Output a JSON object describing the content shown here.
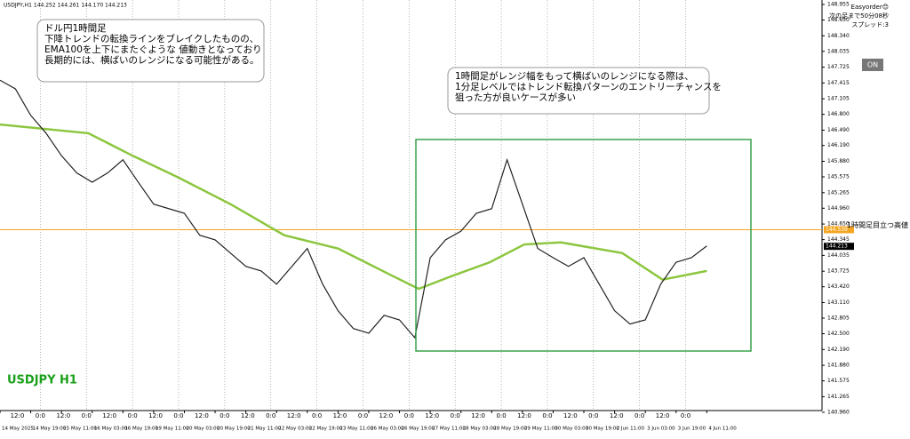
{
  "chart_data": {
    "type": "line",
    "title": "USDJPY H1",
    "header": "USDJPY,H1  144.252 144.261 144.170 144.213",
    "xlim": [
      0,
      428
    ],
    "ylim": [
      140.993,
      149.042
    ],
    "series": [
      {
        "color": "#222222",
        "x": [
          0,
          8,
          16,
          24,
          32,
          40,
          48,
          56,
          64,
          72,
          80,
          88,
          96,
          104,
          112,
          120,
          128,
          136,
          144,
          152,
          160,
          168,
          176,
          184,
          192,
          200,
          208,
          216,
          224,
          232,
          240,
          248,
          256,
          264,
          272,
          280,
          288,
          296,
          304,
          312,
          320,
          328,
          336,
          344,
          352,
          360,
          368
        ],
        "values": [
          147.47,
          147.3,
          146.78,
          146.43,
          145.99,
          145.65,
          145.47,
          145.65,
          145.91,
          145.47,
          145.04,
          144.95,
          144.86,
          144.43,
          144.34,
          144.08,
          143.82,
          143.73,
          143.47,
          143.82,
          144.17,
          143.47,
          142.95,
          142.6,
          142.51,
          142.86,
          142.77,
          142.42,
          143.99,
          144.34,
          144.51,
          144.86,
          144.95,
          145.91,
          145.04,
          144.17,
          143.99,
          143.82,
          143.99,
          143.47,
          142.95,
          142.69,
          142.77,
          143.47,
          143.9,
          143.99,
          144.22
        ]
      },
      {
        "color": "#8cc63f",
        "x": [
          0,
          46,
          69,
          93,
          120,
          148,
          176,
          204,
          218,
          236,
          255,
          273,
          292,
          324,
          345,
          368
        ],
        "values": [
          146.6,
          146.43,
          145.99,
          145.56,
          145.04,
          144.43,
          144.17,
          143.64,
          143.38,
          143.64,
          143.9,
          144.25,
          144.29,
          144.08,
          143.56,
          143.73
        ]
      }
    ],
    "yticks": [
      {
        "value": 148.955,
        "label": "148.955"
      },
      {
        "value": 148.65,
        "label": "148.650"
      },
      {
        "value": 148.34,
        "label": "148.340"
      },
      {
        "value": 148.035,
        "label": "148.035"
      },
      {
        "value": 147.725,
        "label": "147.725"
      },
      {
        "value": 147.415,
        "label": "147.415"
      },
      {
        "value": 147.105,
        "label": "147.105"
      },
      {
        "value": 146.8,
        "label": "146.800"
      },
      {
        "value": 146.49,
        "label": "146.490"
      },
      {
        "value": 146.19,
        "label": "146.190"
      },
      {
        "value": 145.88,
        "label": "145.880"
      },
      {
        "value": 145.575,
        "label": "145.575"
      },
      {
        "value": 145.265,
        "label": "145.265"
      },
      {
        "value": 144.96,
        "label": "144.960"
      },
      {
        "value": 144.65,
        "label": "144.650"
      },
      {
        "value": 144.345,
        "label": "144.345"
      },
      {
        "value": 144.035,
        "label": "144.035"
      },
      {
        "value": 143.725,
        "label": "143.725"
      },
      {
        "value": 143.42,
        "label": "143.420"
      },
      {
        "value": 143.11,
        "label": "143.110"
      },
      {
        "value": 142.805,
        "label": "142.805"
      },
      {
        "value": 142.5,
        "label": "142.500"
      },
      {
        "value": 142.19,
        "label": "142.190"
      },
      {
        "value": 141.88,
        "label": "141.880"
      },
      {
        "value": 141.575,
        "label": "141.575"
      },
      {
        "value": 141.265,
        "label": "141.265"
      },
      {
        "value": 140.96,
        "label": "140.960"
      }
    ],
    "xticks": [
      {
        "value": 0,
        "label": "14 May 2025"
      },
      {
        "value": 16,
        "label": "14 May 19:00"
      },
      {
        "value": 32,
        "label": "15 May 11:00"
      },
      {
        "value": 48,
        "label": "16 May 03:00"
      },
      {
        "value": 64,
        "label": "16 May 19:00"
      },
      {
        "value": 80,
        "label": "19 May 11:00"
      },
      {
        "value": 96,
        "label": "20 May 03:00"
      },
      {
        "value": 112,
        "label": "20 May 19:00"
      },
      {
        "value": 128,
        "label": "21 May 11:00"
      },
      {
        "value": 144,
        "label": "22 May 03:00"
      },
      {
        "value": 160,
        "label": "22 May 19:00"
      },
      {
        "value": 176,
        "label": "23 May 11:00"
      },
      {
        "value": 192,
        "label": "26 May 03:00"
      },
      {
        "value": 208,
        "label": "26 May 19:00"
      },
      {
        "value": 224,
        "label": "27 May 11:00"
      },
      {
        "value": 240,
        "label": "28 May 03:00"
      },
      {
        "value": 256,
        "label": "28 May 19:00"
      },
      {
        "value": 272,
        "label": "29 May 11:00"
      },
      {
        "value": 288,
        "label": "30 May 03:00"
      },
      {
        "value": 304,
        "label": "30 May 19:00"
      },
      {
        "value": 320,
        "label": "2 Jun 11:00"
      },
      {
        "value": 336,
        "label": "3 Jun 03:00"
      },
      {
        "value": 352,
        "label": "3 Jun 19:00"
      },
      {
        "value": 368,
        "label": "4 Jun 11:00"
      }
    ],
    "time_ticks": [
      {
        "value": 9,
        "label": "12:0"
      },
      {
        "value": 21,
        "label": "0:0"
      },
      {
        "value": 33,
        "label": "12:0"
      },
      {
        "value": 45,
        "label": "0:0"
      },
      {
        "value": 57,
        "label": "12:0"
      },
      {
        "value": 69,
        "label": "0:0"
      },
      {
        "value": 81,
        "label": "12:0"
      },
      {
        "value": 93,
        "label": "0:0"
      },
      {
        "value": 105,
        "label": "12:0"
      },
      {
        "value": 117,
        "label": "0:0"
      },
      {
        "value": 129,
        "label": "12:0"
      },
      {
        "value": 141,
        "label": "0:0"
      },
      {
        "value": 153,
        "label": "12:0"
      },
      {
        "value": 165,
        "label": "0:0"
      },
      {
        "value": 177,
        "label": "12:0"
      },
      {
        "value": 189,
        "label": "0:0"
      },
      {
        "value": 201,
        "label": "12:0"
      },
      {
        "value": 213,
        "label": "0:0"
      },
      {
        "value": 225,
        "label": "12:0"
      },
      {
        "value": 237,
        "label": "0:0"
      },
      {
        "value": 249,
        "label": "12:0"
      },
      {
        "value": 261,
        "label": "0:0"
      },
      {
        "value": 273,
        "label": "12:0"
      },
      {
        "value": 285,
        "label": "0:0"
      },
      {
        "value": 297,
        "label": "12:0"
      },
      {
        "value": 309,
        "label": "0:0"
      },
      {
        "value": 321,
        "label": "12:0"
      },
      {
        "value": 333,
        "label": "0:0"
      },
      {
        "value": 345,
        "label": "12:0"
      },
      {
        "value": 357,
        "label": "0:0"
      }
    ],
    "level": {
      "value": 144.539,
      "text": "1時間足目立つ高値",
      "color": "#f5a623"
    },
    "last_price": 144.213,
    "annotations": [
      [
        "ドル円1時間足",
        "下降トレンドの転換ラインをブレイクしたものの、",
        "EMA100を上下にまたぐような 値動きとなっており",
        "長期的には、横ばいのレンジになる可能性がある。"
      ],
      [
        "1時間足がレンジ幅をもって横ばいのレンジになる際は、",
        "1分足レベルではトレンド転換パターンのエントリーチャンスを",
        "狙った方が良いケースが多い"
      ]
    ],
    "panel": {
      "lines": [
        "Easyorder😊",
        "次の足まで50分08秒",
        "スプレッド:3"
      ],
      "button": "ON"
    }
  }
}
